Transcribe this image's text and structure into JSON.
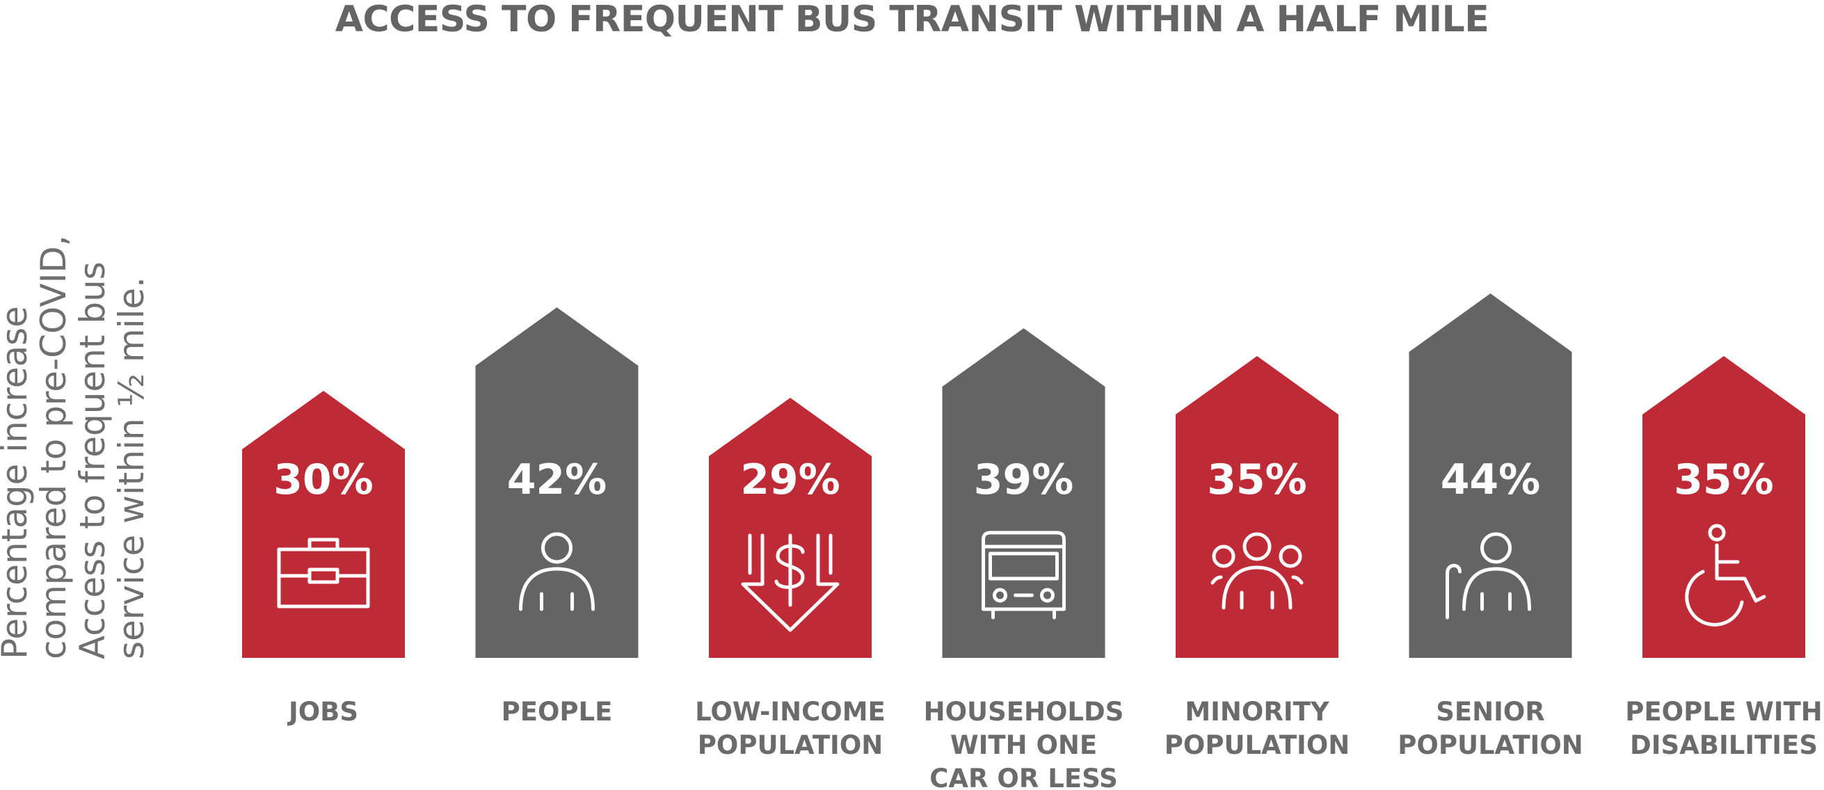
{
  "chart_data": {
    "type": "bar",
    "title": "ACCESS TO FREQUENT BUS TRANSIT WITHIN A HALF MILE",
    "ylabel_lines": [
      "Percentage increase",
      "compared to pre-COVID,",
      "Access to frequent bus",
      "service within ½ mile."
    ],
    "categories": [
      [
        "JOBS"
      ],
      [
        "PEOPLE"
      ],
      [
        "LOW-INCOME",
        "POPULATION"
      ],
      [
        "HOUSEHOLDS",
        "WITH ONE",
        "CAR OR LESS"
      ],
      [
        "MINORITY",
        "POPULATION"
      ],
      [
        "SENIOR",
        "POPULATION"
      ],
      [
        "PEOPLE WITH",
        "DISABILITIES"
      ]
    ],
    "values": [
      30,
      42,
      29,
      39,
      35,
      44,
      35
    ],
    "value_labels": [
      "30%",
      "42%",
      "29%",
      "39%",
      "35%",
      "44%",
      "35%"
    ],
    "icons": [
      "briefcase-icon",
      "person-icon",
      "dollar-down-arrow-icon",
      "bus-icon",
      "group-icon",
      "senior-with-cane-icon",
      "wheelchair-icon"
    ],
    "bar_colors": [
      "#be2a35",
      "#646464",
      "#be2a35",
      "#646464",
      "#be2a35",
      "#646464",
      "#be2a35"
    ],
    "colors": {
      "red": "#be2a35",
      "gray": "#646464",
      "title": "#646464",
      "label": "#6b6b6b"
    }
  }
}
